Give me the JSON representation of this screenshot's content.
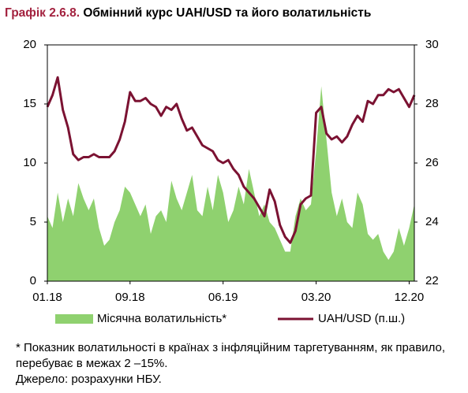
{
  "chart_data": {
    "type": "line",
    "title_label": "Графік 2.6.8.",
    "title": "Обмінний курс UAH/USD та його волатильність",
    "categories": [
      "01.18",
      null,
      null,
      null,
      null,
      null,
      null,
      null,
      null,
      null,
      null,
      null,
      null,
      null,
      null,
      null,
      "09.18",
      null,
      null,
      null,
      null,
      null,
      null,
      null,
      null,
      null,
      null,
      null,
      null,
      null,
      null,
      null,
      null,
      null,
      "06.19",
      null,
      null,
      null,
      null,
      null,
      null,
      null,
      null,
      null,
      null,
      null,
      null,
      null,
      null,
      null,
      null,
      null,
      "03.20",
      null,
      null,
      null,
      null,
      null,
      null,
      null,
      null,
      null,
      null,
      null,
      null,
      null,
      null,
      null,
      null,
      null,
      "12.20",
      null
    ],
    "series": [
      {
        "name": "Місячна волатильність*",
        "type": "area",
        "axis": "y",
        "color": "#8fd16f",
        "values": [
          5.5,
          4.5,
          7.5,
          5.0,
          7.0,
          5.5,
          8.3,
          7.0,
          6.0,
          7.0,
          4.5,
          3.0,
          3.5,
          5.0,
          6.0,
          8.0,
          7.5,
          6.5,
          5.5,
          6.5,
          4.0,
          5.5,
          6.0,
          5.0,
          8.5,
          7.0,
          6.0,
          7.5,
          9.0,
          6.0,
          5.5,
          8.0,
          6.0,
          9.0,
          7.5,
          5.0,
          6.0,
          8.0,
          6.5,
          9.5,
          7.5,
          5.5,
          6.5,
          5.0,
          4.5,
          3.5,
          2.5,
          2.5,
          5.5,
          7.0,
          6.0,
          6.5,
          11.0,
          16.5,
          12.0,
          7.5,
          5.5,
          7.0,
          5.0,
          4.5,
          7.5,
          6.5,
          4.0,
          3.5,
          4.0,
          2.5,
          1.8,
          2.5,
          4.5,
          3.0,
          4.5,
          6.5
        ]
      },
      {
        "name": "UAH/USD (п.ш.)",
        "type": "line",
        "axis": "y2",
        "color": "#7b1232",
        "values": [
          27.9,
          28.3,
          28.9,
          27.8,
          27.2,
          26.3,
          26.1,
          26.2,
          26.2,
          26.3,
          26.2,
          26.2,
          26.2,
          26.4,
          26.8,
          27.4,
          28.4,
          28.1,
          28.1,
          28.2,
          28.0,
          27.9,
          27.6,
          27.9,
          27.8,
          28.0,
          27.5,
          27.1,
          27.2,
          26.9,
          26.6,
          26.5,
          26.4,
          26.1,
          26.0,
          26.1,
          25.8,
          25.6,
          25.2,
          25.0,
          24.8,
          24.5,
          24.2,
          25.1,
          24.7,
          23.9,
          23.5,
          23.3,
          23.7,
          24.6,
          24.8,
          24.9,
          27.7,
          27.9,
          27.0,
          26.8,
          26.9,
          26.7,
          26.9,
          27.3,
          27.6,
          27.4,
          28.1,
          28.0,
          28.3,
          28.3,
          28.5,
          28.4,
          28.5,
          28.2,
          27.9,
          28.3
        ]
      }
    ],
    "ylim": [
      0,
      20
    ],
    "yticks": [
      0,
      5,
      10,
      15,
      20
    ],
    "y2lim": [
      22,
      30
    ],
    "y2ticks": [
      22,
      24,
      26,
      28,
      30
    ],
    "grid": false,
    "footnote": "* Показник волатильності в країнах з інфляційним таргетуванням, як правило, перебуває в межах 2 –15%.",
    "source": "Джерело: розрахунки НБУ."
  }
}
